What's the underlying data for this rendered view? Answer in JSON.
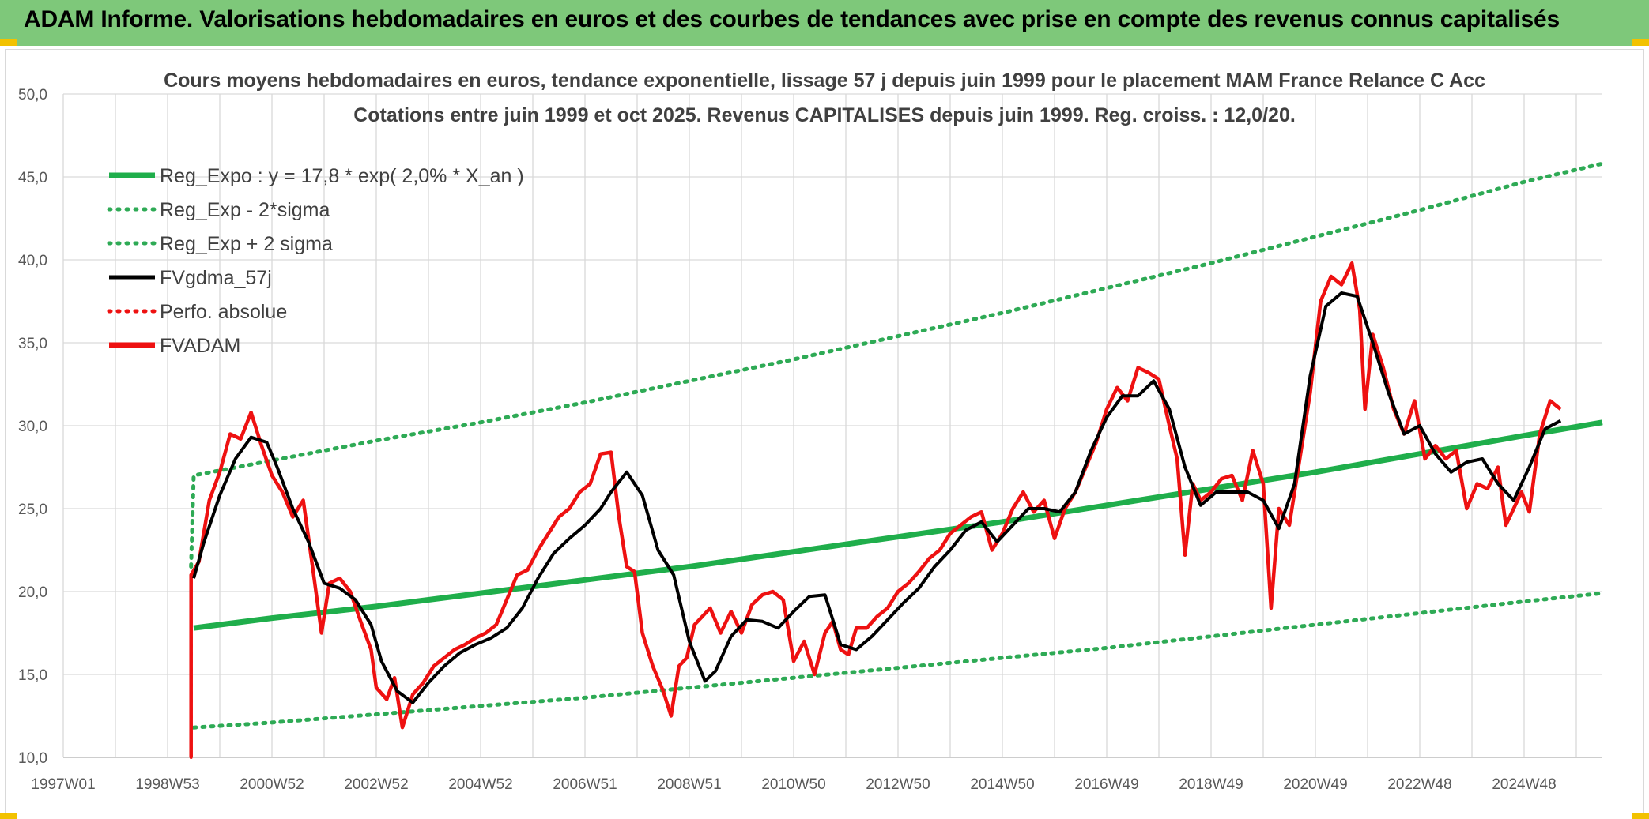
{
  "banner": {
    "title": "ADAM Informe. Valorisations hebdomadaires en euros et des courbes de tendances avec prise en compte des revenus connus capitalisés"
  },
  "colors": {
    "banner_bg": "#7ec87a",
    "accent_corner": "#f2c200",
    "regression": "#1fae4b",
    "sigma_band": "#2eaa55",
    "smoothed": "#000000",
    "price": "#ee1111",
    "grid": "#d9d9d9"
  },
  "chart_data": {
    "type": "line",
    "title_lines": [
      "Cours moyens hebdomadaires en euros, tendance exponentielle, lissage 57 j depuis juin 1999 pour le placement MAM France Relance C Acc",
      "Cotations entre juin 1999 et oct 2025. Revenus CAPITALISES depuis juin 1999. Reg. croiss. : 12,0/20."
    ],
    "xlabel": "",
    "ylabel": "",
    "x_range_years": [
      1997.0,
      2026.5
    ],
    "x_ticks": [
      {
        "label": "1997W01",
        "year": 1997.0
      },
      {
        "label": "1998W53",
        "year": 1999.0
      },
      {
        "label": "2000W52",
        "year": 2001.0
      },
      {
        "label": "2002W52",
        "year": 2003.0
      },
      {
        "label": "2004W52",
        "year": 2005.0
      },
      {
        "label": "2006W51",
        "year": 2007.0
      },
      {
        "label": "2008W51",
        "year": 2009.0
      },
      {
        "label": "2010W50",
        "year": 2011.0
      },
      {
        "label": "2012W50",
        "year": 2013.0
      },
      {
        "label": "2014W50",
        "year": 2015.0
      },
      {
        "label": "2016W49",
        "year": 2017.0
      },
      {
        "label": "2018W49",
        "year": 2019.0
      },
      {
        "label": "2020W49",
        "year": 2021.0
      },
      {
        "label": "2022W48",
        "year": 2023.0
      },
      {
        "label": "2024W48",
        "year": 2025.0
      }
    ],
    "ylim": [
      10,
      50
    ],
    "y_ticks": [
      "10,0",
      "15,0",
      "20,0",
      "25,0",
      "30,0",
      "35,0",
      "40,0",
      "45,0",
      "50,0"
    ],
    "y_tick_values": [
      10,
      15,
      20,
      25,
      30,
      35,
      40,
      45,
      50
    ],
    "grid": true,
    "legend_position": "top-left",
    "legend": [
      {
        "label": "Reg_Expo : y = 17,8 * exp( 2,0% *  X_an )",
        "style": "solid-thick",
        "color": "#1fae4b"
      },
      {
        "label": "Reg_Exp - 2*sigma",
        "style": "dotted",
        "color": "#2eaa55"
      },
      {
        "label": "Reg_Exp + 2 sigma",
        "style": "dotted",
        "color": "#2eaa55"
      },
      {
        "label": "FVgdma_57j",
        "style": "solid",
        "color": "#000000"
      },
      {
        "label": "Perfo. absolue",
        "style": "dotted",
        "color": "#ee1111"
      },
      {
        "label": "FVADAM",
        "style": "solid-thick",
        "color": "#ee1111"
      }
    ],
    "series": [
      {
        "name": "Reg_Expo",
        "x_years": [
          1999.5,
          2001.0,
          2003.0,
          2005.0,
          2007.0,
          2009.0,
          2011.0,
          2013.0,
          2015.0,
          2017.0,
          2019.0,
          2021.0,
          2023.0,
          2025.0,
          2026.5
        ],
        "values": [
          17.8,
          18.4,
          19.1,
          19.9,
          20.7,
          21.5,
          22.4,
          23.3,
          24.2,
          25.2,
          26.2,
          27.2,
          28.3,
          29.4,
          30.2
        ]
      },
      {
        "name": "Reg_Exp - 2*sigma",
        "x_years": [
          1999.5,
          2001.0,
          2003.0,
          2005.0,
          2007.0,
          2009.0,
          2011.0,
          2013.0,
          2015.0,
          2017.0,
          2019.0,
          2021.0,
          2023.0,
          2025.0,
          2026.5
        ],
        "values": [
          11.8,
          12.1,
          12.6,
          13.1,
          13.6,
          14.2,
          14.8,
          15.4,
          16.0,
          16.6,
          17.3,
          18.0,
          18.7,
          19.4,
          19.9
        ]
      },
      {
        "name": "Reg_Exp + 2 sigma",
        "x_years": [
          1999.45,
          1999.5,
          2001.0,
          2003.0,
          2005.0,
          2007.0,
          2009.0,
          2011.0,
          2013.0,
          2015.0,
          2017.0,
          2019.0,
          2021.0,
          2023.0,
          2025.0,
          2026.5
        ],
        "values": [
          21.5,
          27.0,
          27.9,
          29.1,
          30.2,
          31.4,
          32.7,
          34.0,
          35.4,
          36.8,
          38.3,
          39.8,
          41.4,
          43.0,
          44.7,
          45.8
        ]
      },
      {
        "name": "FVgdma_57j",
        "x_years": [
          1999.5,
          1999.7,
          2000.0,
          2000.3,
          2000.6,
          2000.9,
          2001.1,
          2001.4,
          2001.7,
          2002.0,
          2002.3,
          2002.6,
          2002.9,
          2003.1,
          2003.4,
          2003.7,
          2004.0,
          2004.3,
          2004.6,
          2004.9,
          2005.2,
          2005.5,
          2005.8,
          2006.1,
          2006.4,
          2006.7,
          2007.0,
          2007.3,
          2007.5,
          2007.8,
          2008.1,
          2008.4,
          2008.7,
          2009.0,
          2009.3,
          2009.5,
          2009.8,
          2010.1,
          2010.4,
          2010.7,
          2011.0,
          2011.3,
          2011.6,
          2011.9,
          2012.2,
          2012.5,
          2012.8,
          2013.1,
          2013.4,
          2013.7,
          2014.0,
          2014.3,
          2014.6,
          2014.9,
          2015.2,
          2015.5,
          2015.8,
          2016.1,
          2016.4,
          2016.7,
          2017.0,
          2017.3,
          2017.6,
          2017.9,
          2018.2,
          2018.5,
          2018.8,
          2019.1,
          2019.4,
          2019.7,
          2020.0,
          2020.3,
          2020.6,
          2020.9,
          2021.2,
          2021.5,
          2021.8,
          2022.1,
          2022.4,
          2022.7,
          2023.0,
          2023.3,
          2023.6,
          2023.9,
          2024.2,
          2024.5,
          2024.8,
          2025.1,
          2025.4,
          2025.7
        ],
        "values": [
          20.8,
          23.0,
          25.8,
          28.0,
          29.3,
          29.0,
          27.5,
          25.0,
          23.0,
          20.5,
          20.2,
          19.5,
          18.0,
          15.8,
          14.0,
          13.3,
          14.5,
          15.5,
          16.3,
          16.8,
          17.2,
          17.8,
          19.0,
          20.8,
          22.3,
          23.2,
          24.0,
          25.0,
          26.0,
          27.2,
          25.8,
          22.5,
          21.0,
          17.0,
          14.6,
          15.2,
          17.3,
          18.3,
          18.2,
          17.8,
          18.8,
          19.7,
          19.8,
          16.8,
          16.5,
          17.3,
          18.3,
          19.3,
          20.2,
          21.5,
          22.5,
          23.7,
          24.2,
          23.0,
          24.0,
          25.0,
          25.0,
          24.8,
          26.0,
          28.5,
          30.5,
          31.8,
          31.8,
          32.7,
          31.0,
          27.5,
          25.2,
          26.0,
          26.0,
          26.0,
          25.5,
          23.8,
          26.5,
          33.0,
          37.2,
          38.0,
          37.8,
          35.0,
          32.0,
          29.5,
          30.0,
          28.3,
          27.2,
          27.8,
          28.0,
          26.5,
          25.5,
          27.5,
          29.8,
          30.3
        ]
      },
      {
        "name": "Perfo. absolue",
        "x_years": [
          1999.45,
          1999.45
        ],
        "values": [
          10.0,
          20.8
        ]
      },
      {
        "name": "FVADAM",
        "x_years": [
          1999.45,
          1999.45,
          1999.6,
          1999.8,
          2000.0,
          2000.2,
          2000.4,
          2000.6,
          2000.8,
          2001.0,
          2001.2,
          2001.4,
          2001.6,
          2001.8,
          2001.95,
          2002.1,
          2002.3,
          2002.5,
          2002.7,
          2002.9,
          2003.0,
          2003.2,
          2003.35,
          2003.5,
          2003.7,
          2003.9,
          2004.1,
          2004.3,
          2004.5,
          2004.7,
          2004.9,
          2005.1,
          2005.3,
          2005.5,
          2005.7,
          2005.9,
          2006.1,
          2006.3,
          2006.5,
          2006.7,
          2006.9,
          2007.1,
          2007.3,
          2007.5,
          2007.65,
          2007.8,
          2007.95,
          2008.1,
          2008.3,
          2008.5,
          2008.65,
          2008.8,
          2008.95,
          2009.1,
          2009.25,
          2009.4,
          2009.6,
          2009.8,
          2010.0,
          2010.2,
          2010.4,
          2010.6,
          2010.8,
          2011.0,
          2011.2,
          2011.4,
          2011.6,
          2011.75,
          2011.9,
          2012.05,
          2012.2,
          2012.4,
          2012.6,
          2012.8,
          2013.0,
          2013.2,
          2013.4,
          2013.6,
          2013.8,
          2014.0,
          2014.2,
          2014.4,
          2014.6,
          2014.8,
          2015.0,
          2015.2,
          2015.4,
          2015.6,
          2015.8,
          2016.0,
          2016.2,
          2016.4,
          2016.6,
          2016.8,
          2017.0,
          2017.2,
          2017.4,
          2017.6,
          2017.8,
          2018.0,
          2018.2,
          2018.35,
          2018.5,
          2018.65,
          2018.8,
          2019.0,
          2019.2,
          2019.4,
          2019.6,
          2019.8,
          2020.0,
          2020.15,
          2020.3,
          2020.5,
          2020.7,
          2020.9,
          2021.1,
          2021.3,
          2021.5,
          2021.7,
          2021.85,
          2021.95,
          2022.1,
          2022.3,
          2022.5,
          2022.7,
          2022.9,
          2023.1,
          2023.3,
          2023.5,
          2023.7,
          2023.9,
          2024.1,
          2024.3,
          2024.5,
          2024.65,
          2024.8,
          2024.95,
          2025.1,
          2025.3,
          2025.5,
          2025.7
        ],
        "values": [
          10.0,
          21.0,
          21.8,
          25.5,
          27.2,
          29.5,
          29.2,
          30.8,
          28.8,
          27.0,
          26.0,
          24.5,
          25.5,
          21.0,
          17.5,
          20.5,
          20.8,
          20.0,
          18.2,
          16.5,
          14.2,
          13.5,
          14.8,
          11.8,
          13.8,
          14.5,
          15.5,
          16.0,
          16.5,
          16.8,
          17.2,
          17.5,
          18.0,
          19.5,
          21.0,
          21.3,
          22.5,
          23.5,
          24.5,
          25.0,
          26.0,
          26.5,
          28.3,
          28.4,
          24.5,
          21.5,
          21.2,
          17.5,
          15.5,
          14.0,
          12.5,
          15.5,
          16.0,
          18.0,
          18.5,
          19.0,
          17.5,
          18.8,
          17.5,
          19.2,
          19.8,
          20.0,
          19.5,
          15.8,
          17.0,
          15.0,
          17.5,
          18.2,
          16.5,
          16.2,
          17.8,
          17.8,
          18.5,
          19.0,
          20.0,
          20.5,
          21.2,
          22.0,
          22.5,
          23.5,
          24.0,
          24.5,
          24.8,
          22.5,
          23.5,
          25.0,
          26.0,
          24.8,
          25.5,
          23.2,
          25.0,
          26.0,
          27.5,
          29.0,
          31.0,
          32.3,
          31.5,
          33.5,
          33.2,
          32.8,
          30.0,
          28.0,
          22.2,
          26.5,
          25.5,
          26.0,
          26.8,
          27.0,
          25.5,
          28.5,
          26.5,
          19.0,
          25.0,
          24.0,
          28.0,
          32.0,
          37.5,
          39.0,
          38.5,
          39.8,
          37.0,
          31.0,
          35.5,
          33.5,
          31.0,
          29.5,
          31.5,
          28.0,
          28.8,
          28.0,
          28.5,
          25.0,
          26.5,
          26.2,
          27.5,
          24.0,
          25.0,
          26.0,
          24.8,
          29.5,
          31.5,
          31.0
        ]
      }
    ]
  }
}
